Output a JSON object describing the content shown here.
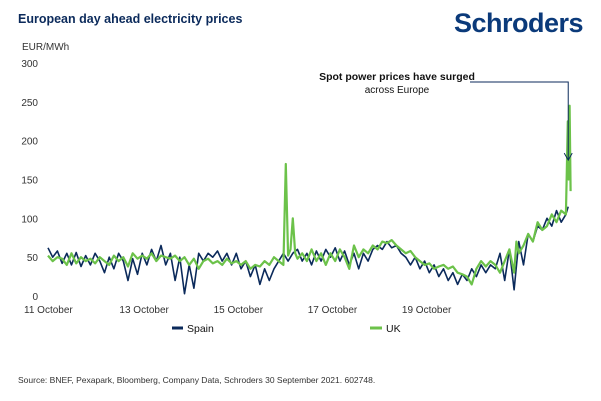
{
  "header": {
    "title": "European day ahead electricity prices",
    "logo_text": "Schroders"
  },
  "footer": {
    "source": "Source: BNEF, Pexapark, Bloomberg, Company Data, Schroders 30 September 2021. 602748."
  },
  "colors": {
    "spain": "#0b2a5b",
    "uk": "#6cc24a",
    "axis_text": "#333333",
    "annotation": "#0b2a5b"
  },
  "chart_data": {
    "type": "line",
    "title": "European day ahead electricity prices",
    "ylabel": "EUR/MWh",
    "xlabel": "",
    "ylim": [
      0,
      300
    ],
    "yticks": [
      0,
      50,
      100,
      150,
      200,
      250,
      300
    ],
    "xlim": [
      11,
      22.3
    ],
    "xticks": [
      {
        "x": 11,
        "label": "11 October"
      },
      {
        "x": 13,
        "label": "13 October"
      },
      {
        "x": 15,
        "label": "15 October"
      },
      {
        "x": 17,
        "label": "17 October"
      },
      {
        "x": 19,
        "label": "19 October"
      }
    ],
    "grid": false,
    "legend_position": "bottom",
    "annotation": {
      "line1": "Spot power prices have surged",
      "line2": "across Europe",
      "arrow_x": 22.05,
      "arrow_y": 175
    },
    "series": [
      {
        "name": "Spain",
        "color": "#0b2a5b",
        "points": [
          [
            11.0,
            62
          ],
          [
            11.1,
            50
          ],
          [
            11.2,
            58
          ],
          [
            11.3,
            42
          ],
          [
            11.4,
            55
          ],
          [
            11.5,
            40
          ],
          [
            11.6,
            56
          ],
          [
            11.7,
            38
          ],
          [
            11.8,
            52
          ],
          [
            11.9,
            40
          ],
          [
            12.0,
            55
          ],
          [
            12.1,
            45
          ],
          [
            12.2,
            30
          ],
          [
            12.3,
            50
          ],
          [
            12.4,
            35
          ],
          [
            12.5,
            55
          ],
          [
            12.6,
            45
          ],
          [
            12.7,
            20
          ],
          [
            12.8,
            48
          ],
          [
            12.9,
            28
          ],
          [
            13.0,
            55
          ],
          [
            13.1,
            40
          ],
          [
            13.2,
            60
          ],
          [
            13.3,
            45
          ],
          [
            13.4,
            65
          ],
          [
            13.5,
            40
          ],
          [
            13.6,
            55
          ],
          [
            13.7,
            20
          ],
          [
            13.8,
            50
          ],
          [
            13.9,
            3
          ],
          [
            14.0,
            40
          ],
          [
            14.1,
            10
          ],
          [
            14.2,
            55
          ],
          [
            14.3,
            45
          ],
          [
            14.4,
            55
          ],
          [
            14.5,
            50
          ],
          [
            14.6,
            58
          ],
          [
            14.7,
            45
          ],
          [
            14.8,
            55
          ],
          [
            14.9,
            40
          ],
          [
            15.0,
            55
          ],
          [
            15.1,
            35
          ],
          [
            15.2,
            45
          ],
          [
            15.3,
            25
          ],
          [
            15.4,
            40
          ],
          [
            15.5,
            15
          ],
          [
            15.6,
            35
          ],
          [
            15.7,
            20
          ],
          [
            15.8,
            35
          ],
          [
            15.9,
            45
          ],
          [
            16.0,
            55
          ],
          [
            16.1,
            45
          ],
          [
            16.2,
            55
          ],
          [
            16.3,
            60
          ],
          [
            16.4,
            45
          ],
          [
            16.5,
            55
          ],
          [
            16.6,
            40
          ],
          [
            16.7,
            58
          ],
          [
            16.8,
            45
          ],
          [
            16.9,
            60
          ],
          [
            17.0,
            50
          ],
          [
            17.1,
            62
          ],
          [
            17.2,
            45
          ],
          [
            17.3,
            58
          ],
          [
            17.4,
            40
          ],
          [
            17.5,
            55
          ],
          [
            17.6,
            35
          ],
          [
            17.7,
            55
          ],
          [
            17.8,
            45
          ],
          [
            17.9,
            60
          ],
          [
            18.0,
            65
          ],
          [
            18.1,
            60
          ],
          [
            18.2,
            70
          ],
          [
            18.3,
            62
          ],
          [
            18.4,
            65
          ],
          [
            18.5,
            55
          ],
          [
            18.6,
            50
          ],
          [
            18.7,
            40
          ],
          [
            18.8,
            50
          ],
          [
            18.9,
            35
          ],
          [
            19.0,
            45
          ],
          [
            19.1,
            30
          ],
          [
            19.2,
            40
          ],
          [
            19.3,
            25
          ],
          [
            19.4,
            35
          ],
          [
            19.5,
            20
          ],
          [
            19.6,
            30
          ],
          [
            19.7,
            15
          ],
          [
            19.8,
            28
          ],
          [
            19.9,
            20
          ],
          [
            20.0,
            35
          ],
          [
            20.1,
            25
          ],
          [
            20.2,
            40
          ],
          [
            20.3,
            30
          ],
          [
            20.4,
            40
          ],
          [
            20.5,
            35
          ],
          [
            20.6,
            55
          ],
          [
            20.7,
            20
          ],
          [
            20.8,
            60
          ],
          [
            20.9,
            8
          ],
          [
            21.0,
            70
          ],
          [
            21.1,
            40
          ],
          [
            21.2,
            80
          ],
          [
            21.3,
            70
          ],
          [
            21.4,
            90
          ],
          [
            21.5,
            85
          ],
          [
            21.6,
            100
          ],
          [
            21.7,
            90
          ],
          [
            21.8,
            110
          ],
          [
            21.9,
            95
          ],
          [
            22.0,
            105
          ],
          [
            22.05,
            115
          ]
        ]
      },
      {
        "name": "UK",
        "color": "#6cc24a",
        "points": [
          [
            11.0,
            52
          ],
          [
            11.1,
            45
          ],
          [
            11.2,
            50
          ],
          [
            11.3,
            48
          ],
          [
            11.4,
            40
          ],
          [
            11.5,
            55
          ],
          [
            11.6,
            42
          ],
          [
            11.7,
            50
          ],
          [
            11.8,
            45
          ],
          [
            11.9,
            48
          ],
          [
            12.0,
            42
          ],
          [
            12.1,
            50
          ],
          [
            12.2,
            45
          ],
          [
            12.3,
            40
          ],
          [
            12.4,
            52
          ],
          [
            12.5,
            45
          ],
          [
            12.6,
            50
          ],
          [
            12.7,
            38
          ],
          [
            12.8,
            55
          ],
          [
            12.9,
            48
          ],
          [
            13.0,
            52
          ],
          [
            13.1,
            48
          ],
          [
            13.2,
            55
          ],
          [
            13.3,
            45
          ],
          [
            13.4,
            52
          ],
          [
            13.5,
            50
          ],
          [
            13.6,
            48
          ],
          [
            13.7,
            52
          ],
          [
            13.8,
            45
          ],
          [
            13.9,
            50
          ],
          [
            14.0,
            40
          ],
          [
            14.1,
            48
          ],
          [
            14.2,
            35
          ],
          [
            14.3,
            45
          ],
          [
            14.4,
            48
          ],
          [
            14.5,
            42
          ],
          [
            14.6,
            45
          ],
          [
            14.7,
            40
          ],
          [
            14.8,
            48
          ],
          [
            14.9,
            42
          ],
          [
            15.0,
            45
          ],
          [
            15.1,
            40
          ],
          [
            15.2,
            45
          ],
          [
            15.3,
            35
          ],
          [
            15.4,
            40
          ],
          [
            15.5,
            38
          ],
          [
            15.6,
            45
          ],
          [
            15.7,
            40
          ],
          [
            15.8,
            50
          ],
          [
            15.9,
            45
          ],
          [
            16.0,
            40
          ],
          [
            16.05,
            170
          ],
          [
            16.1,
            52
          ],
          [
            16.15,
            60
          ],
          [
            16.2,
            100
          ],
          [
            16.25,
            55
          ],
          [
            16.3,
            48
          ],
          [
            16.4,
            55
          ],
          [
            16.5,
            45
          ],
          [
            16.6,
            60
          ],
          [
            16.7,
            45
          ],
          [
            16.8,
            55
          ],
          [
            16.9,
            40
          ],
          [
            17.0,
            55
          ],
          [
            17.1,
            45
          ],
          [
            17.2,
            60
          ],
          [
            17.3,
            50
          ],
          [
            17.4,
            35
          ],
          [
            17.5,
            65
          ],
          [
            17.6,
            50
          ],
          [
            17.7,
            60
          ],
          [
            17.8,
            55
          ],
          [
            17.9,
            65
          ],
          [
            18.0,
            60
          ],
          [
            18.1,
            70
          ],
          [
            18.2,
            68
          ],
          [
            18.3,
            72
          ],
          [
            18.4,
            65
          ],
          [
            18.5,
            60
          ],
          [
            18.6,
            55
          ],
          [
            18.7,
            58
          ],
          [
            18.8,
            50
          ],
          [
            18.9,
            45
          ],
          [
            19.0,
            40
          ],
          [
            19.1,
            42
          ],
          [
            19.2,
            35
          ],
          [
            19.3,
            38
          ],
          [
            19.4,
            40
          ],
          [
            19.5,
            35
          ],
          [
            19.6,
            38
          ],
          [
            19.7,
            30
          ],
          [
            19.8,
            28
          ],
          [
            19.9,
            25
          ],
          [
            20.0,
            15
          ],
          [
            20.1,
            35
          ],
          [
            20.2,
            45
          ],
          [
            20.3,
            38
          ],
          [
            20.4,
            45
          ],
          [
            20.5,
            40
          ],
          [
            20.6,
            30
          ],
          [
            20.7,
            45
          ],
          [
            20.8,
            60
          ],
          [
            20.9,
            30
          ],
          [
            20.95,
            70
          ],
          [
            21.0,
            55
          ],
          [
            21.1,
            65
          ],
          [
            21.2,
            80
          ],
          [
            21.3,
            70
          ],
          [
            21.4,
            95
          ],
          [
            21.5,
            85
          ],
          [
            21.6,
            90
          ],
          [
            21.7,
            105
          ],
          [
            21.8,
            95
          ],
          [
            21.9,
            110
          ],
          [
            22.0,
            105
          ],
          [
            22.02,
            160
          ],
          [
            22.04,
            225
          ],
          [
            22.06,
            150
          ],
          [
            22.08,
            245
          ],
          [
            22.1,
            135
          ]
        ]
      }
    ]
  }
}
